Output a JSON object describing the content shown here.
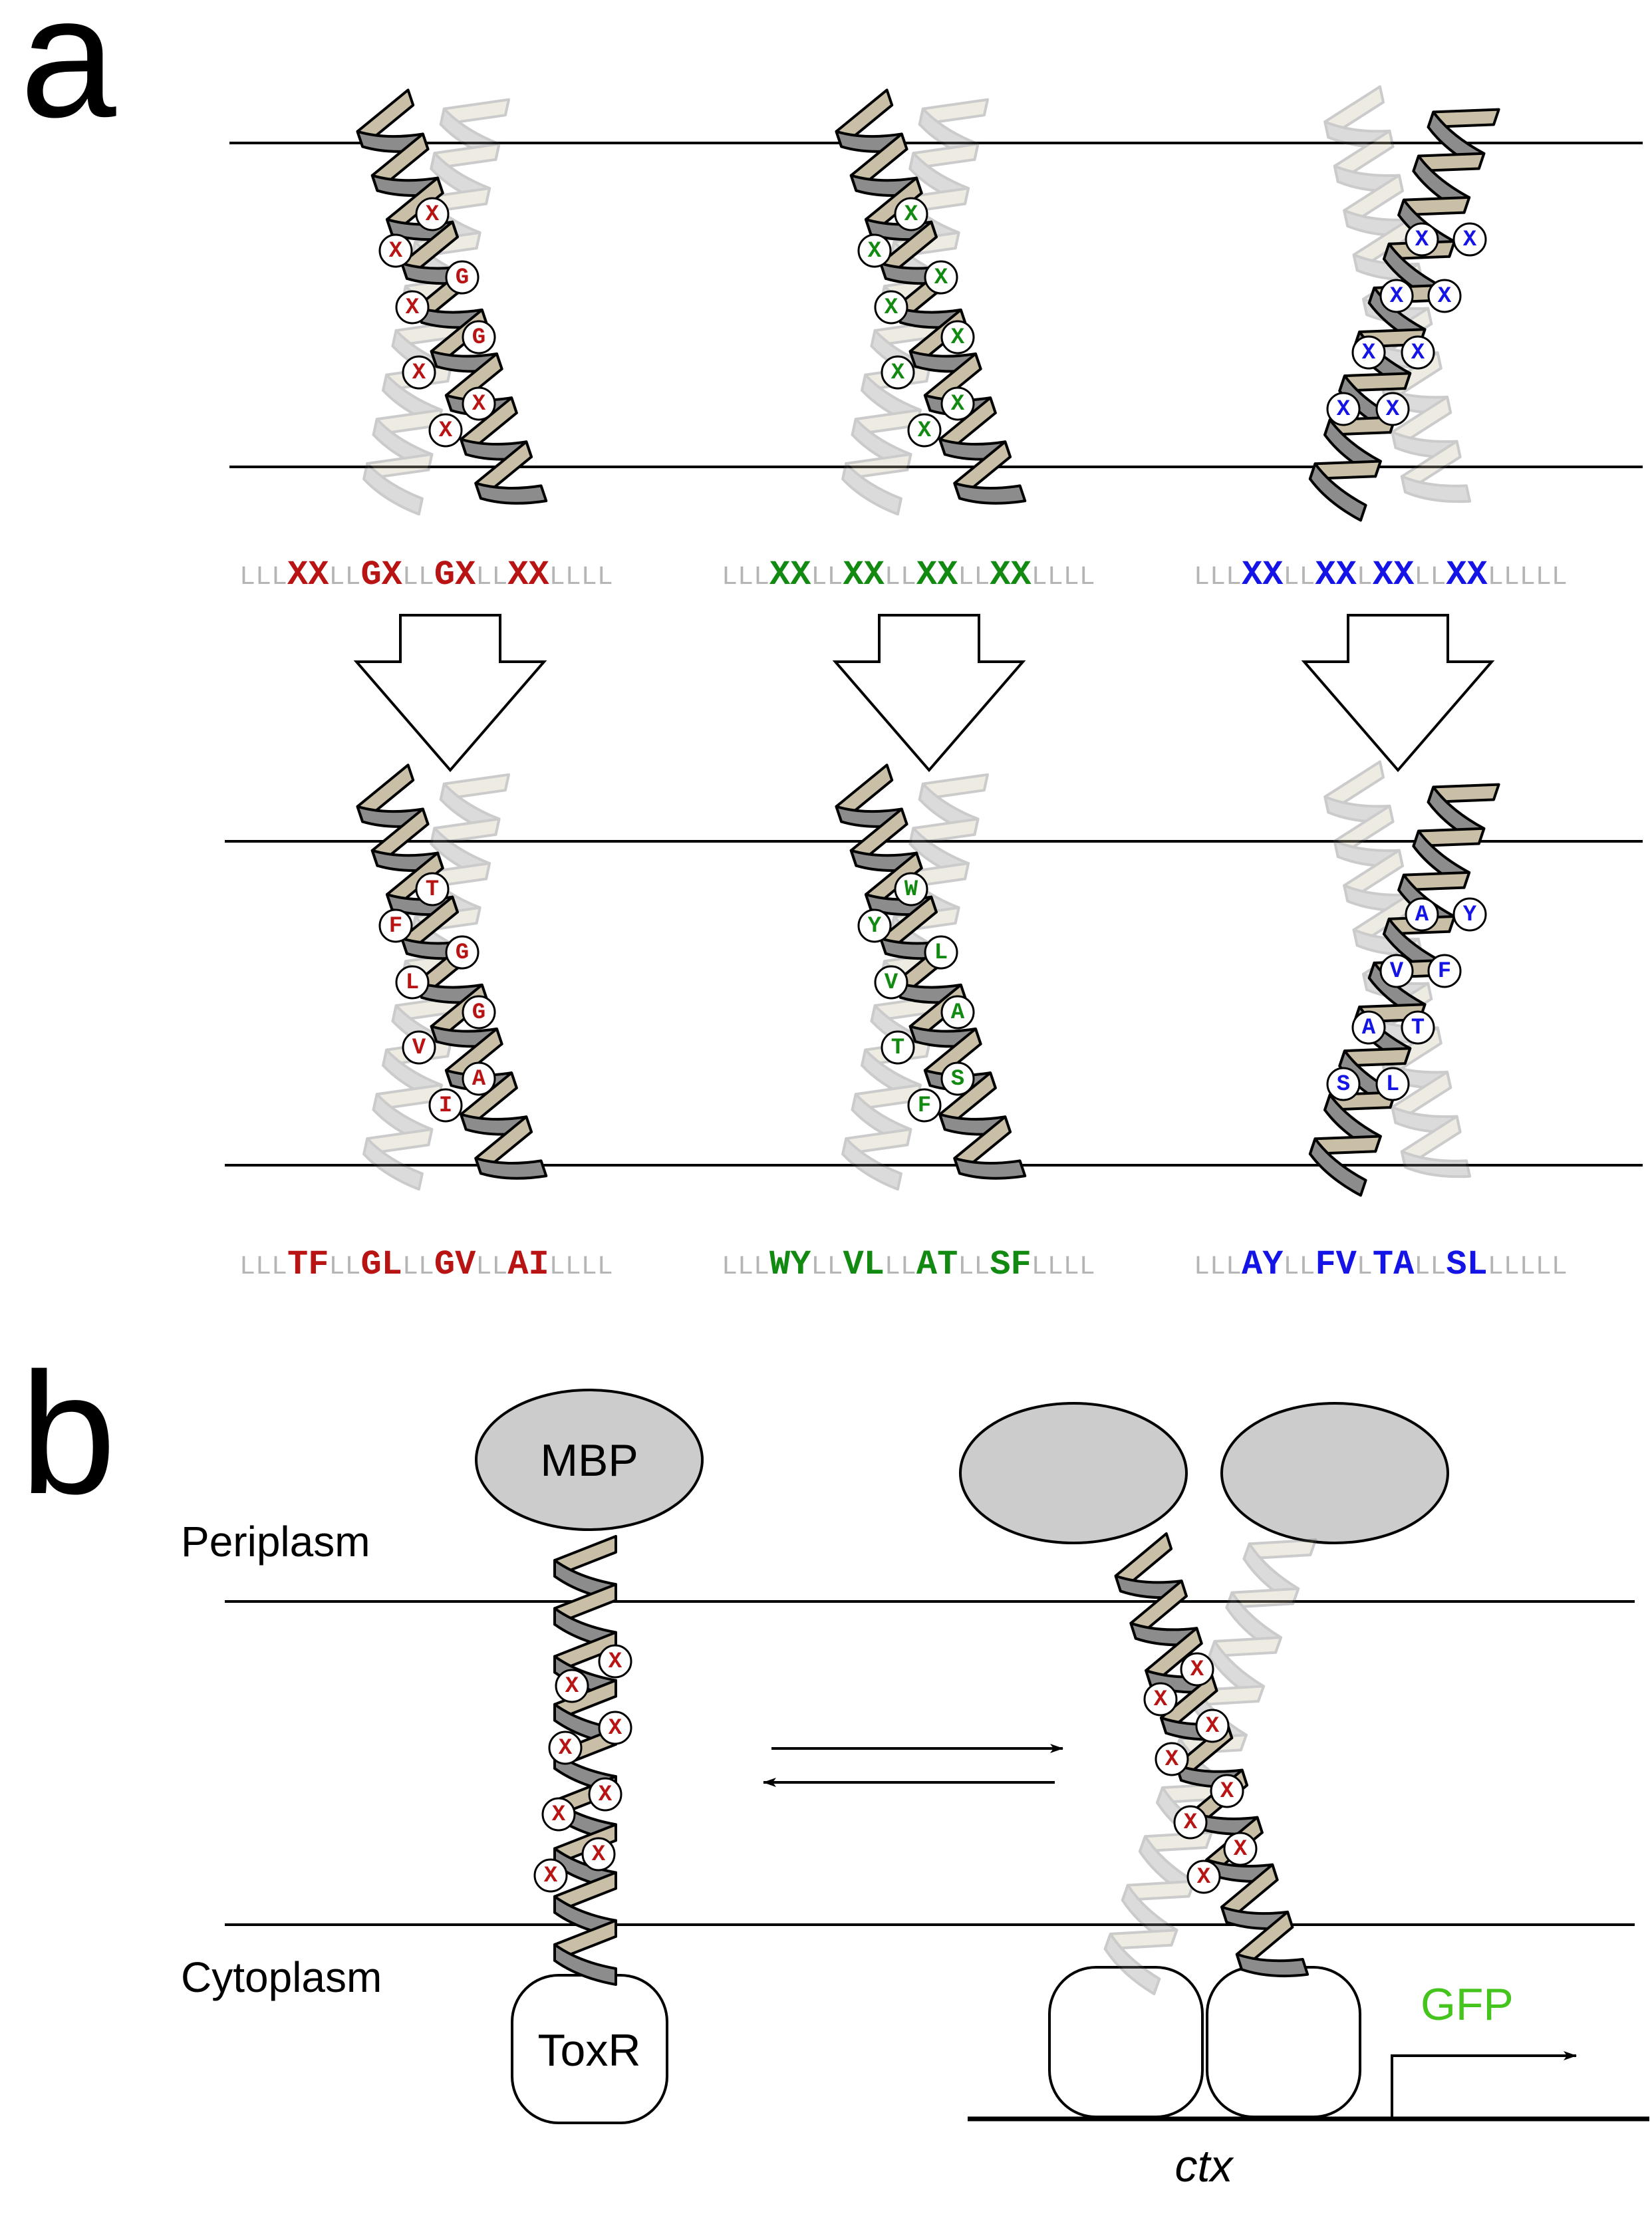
{
  "panel_labels": {
    "a": "a",
    "b": "b"
  },
  "colors": {
    "red": "#b81414",
    "green": "#128a12",
    "blue": "#1414e6",
    "gray_seq": "#b5b5b5",
    "gfp": "#44c41c",
    "helix_dark": "#8c8c8c",
    "helix_light": "#c9bfa6",
    "protein_fill": "#cccccc"
  },
  "panel_a": {
    "motifs": [
      {
        "color": "red",
        "top_residues": [
          "X",
          "X",
          "G",
          "X",
          "G",
          "X",
          "X",
          "X"
        ],
        "top_sequence": [
          [
            "LLL",
            "g"
          ],
          [
            "XX",
            "c"
          ],
          [
            "LL",
            "g"
          ],
          [
            "GX",
            "c"
          ],
          [
            "LL",
            "g"
          ],
          [
            "GX",
            "c"
          ],
          [
            "LL",
            "g"
          ],
          [
            "XX",
            "c"
          ],
          [
            "LLLL",
            "g"
          ]
        ],
        "bottom_residues": [
          "T",
          "F",
          "G",
          "L",
          "G",
          "V",
          "A",
          "I"
        ],
        "bottom_sequence": [
          [
            "LLL",
            "g"
          ],
          [
            "TF",
            "c"
          ],
          [
            "LL",
            "g"
          ],
          [
            "GL",
            "c"
          ],
          [
            "LL",
            "g"
          ],
          [
            "GV",
            "c"
          ],
          [
            "LL",
            "g"
          ],
          [
            "AI",
            "c"
          ],
          [
            "LLLL",
            "g"
          ]
        ]
      },
      {
        "color": "green",
        "top_residues": [
          "X",
          "X",
          "X",
          "X",
          "X",
          "X",
          "X",
          "X"
        ],
        "top_sequence": [
          [
            "LLL",
            "g"
          ],
          [
            "XX",
            "c"
          ],
          [
            "LL",
            "g"
          ],
          [
            "XX",
            "c"
          ],
          [
            "LL",
            "g"
          ],
          [
            "XX",
            "c"
          ],
          [
            "LL",
            "g"
          ],
          [
            "XX",
            "c"
          ],
          [
            "LLLL",
            "g"
          ]
        ],
        "bottom_residues": [
          "W",
          "Y",
          "L",
          "V",
          "A",
          "T",
          "S",
          "F"
        ],
        "bottom_sequence": [
          [
            "LLL",
            "g"
          ],
          [
            "WY",
            "c"
          ],
          [
            "LL",
            "g"
          ],
          [
            "VL",
            "c"
          ],
          [
            "LL",
            "g"
          ],
          [
            "AT",
            "c"
          ],
          [
            "LL",
            "g"
          ],
          [
            "SF",
            "c"
          ],
          [
            "LLLL",
            "g"
          ]
        ]
      },
      {
        "color": "blue",
        "top_residues": [
          "X",
          "X",
          "X",
          "X",
          "X",
          "X",
          "X",
          "X"
        ],
        "top_sequence": [
          [
            "LLL",
            "g"
          ],
          [
            "XX",
            "c"
          ],
          [
            "LL",
            "g"
          ],
          [
            "XX",
            "c"
          ],
          [
            "L",
            "g"
          ],
          [
            "XX",
            "c"
          ],
          [
            "LL",
            "g"
          ],
          [
            "XX",
            "c"
          ],
          [
            "LLLLL",
            "g"
          ]
        ],
        "bottom_residues": [
          "A",
          "Y",
          "V",
          "F",
          "A",
          "T",
          "S",
          "L"
        ],
        "bottom_sequence": [
          [
            "LLL",
            "g"
          ],
          [
            "AY",
            "c"
          ],
          [
            "LL",
            "g"
          ],
          [
            "FV",
            "c"
          ],
          [
            "L",
            "g"
          ],
          [
            "TA",
            "c"
          ],
          [
            "LL",
            "g"
          ],
          [
            "SL",
            "c"
          ],
          [
            "LLLLL",
            "g"
          ]
        ]
      }
    ]
  },
  "panel_b": {
    "periplasm": "Periplasm",
    "cytoplasm": "Cytoplasm",
    "mbp": "MBP",
    "toxr": "ToxR",
    "gfp": "GFP",
    "ctx": "ctx",
    "monomer_residues": [
      "X",
      "X",
      "X",
      "X",
      "X",
      "X",
      "X",
      "X"
    ],
    "dimer_residues": [
      "X",
      "X",
      "X",
      "X",
      "X",
      "X",
      "X",
      "X"
    ]
  }
}
